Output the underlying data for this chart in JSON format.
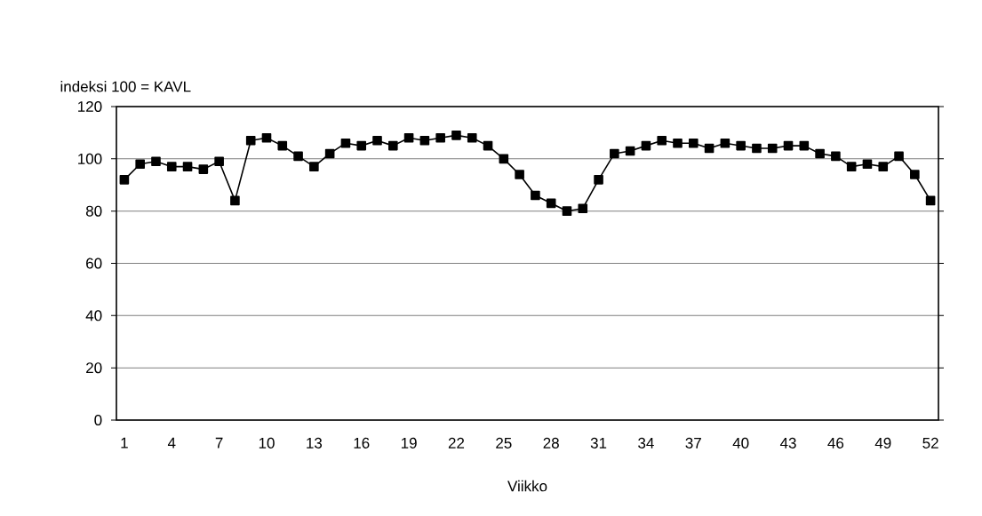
{
  "chart_data": {
    "type": "line",
    "ylabel": "indeksi 100 = KAVL",
    "xlabel": "Viikko",
    "categories": [
      "1",
      null,
      null,
      "4",
      null,
      null,
      "7",
      null,
      null,
      "10",
      null,
      null,
      "13",
      null,
      null,
      "16",
      null,
      null,
      "19",
      null,
      null,
      "22",
      null,
      null,
      "25",
      null,
      null,
      "28",
      null,
      null,
      "31",
      null,
      null,
      "34",
      null,
      null,
      "37",
      null,
      null,
      "40",
      null,
      null,
      "43",
      null,
      null,
      "46",
      null,
      null,
      "49",
      null,
      null,
      "52"
    ],
    "series": [
      {
        "color": "#000000",
        "values": [
          92,
          98,
          99,
          97,
          97,
          96,
          99,
          84,
          107,
          108,
          105,
          101,
          97,
          102,
          106,
          105,
          107,
          105,
          108,
          107,
          108,
          109,
          108,
          105,
          100,
          94,
          86,
          83,
          80,
          81,
          92,
          102,
          103,
          105,
          107,
          106,
          106,
          104,
          106,
          105,
          104,
          104,
          105,
          105,
          102,
          101,
          97,
          98,
          97,
          101,
          94,
          84
        ]
      }
    ],
    "ylim": [
      0,
      120
    ],
    "yticks": [
      0,
      20,
      40,
      60,
      80,
      100,
      120
    ],
    "grid": "y",
    "marker": "square",
    "line_style": "solid"
  }
}
